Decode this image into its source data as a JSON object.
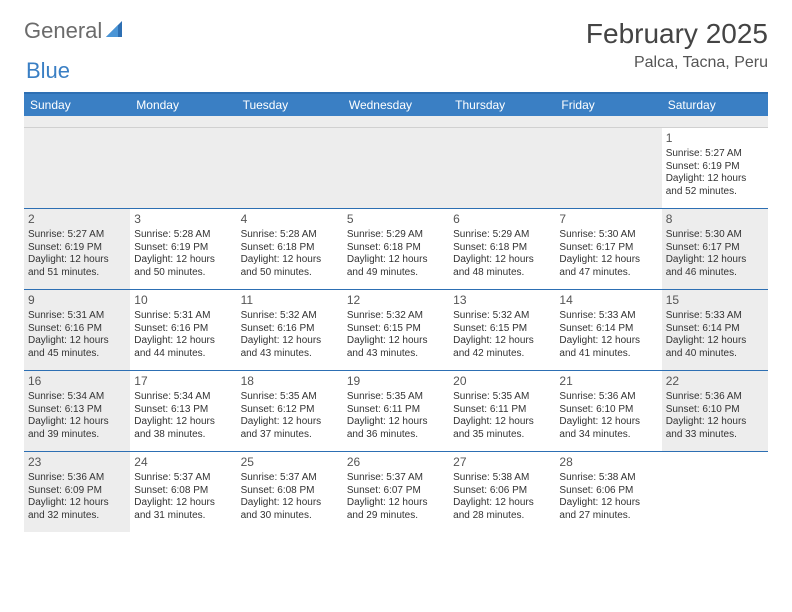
{
  "logo": {
    "text1": "General",
    "text2": "Blue"
  },
  "title": "February 2025",
  "location": "Palca, Tacna, Peru",
  "day_headers": [
    "Sunday",
    "Monday",
    "Tuesday",
    "Wednesday",
    "Thursday",
    "Friday",
    "Saturday"
  ],
  "colors": {
    "header_bg": "#3a7fc4",
    "header_text": "#ffffff",
    "border": "#2d6fb3",
    "shade": "#ededed"
  },
  "weeks": [
    [
      {
        "empty": true
      },
      {
        "empty": true
      },
      {
        "empty": true
      },
      {
        "empty": true
      },
      {
        "empty": true
      },
      {
        "empty": true
      },
      {
        "day": "1",
        "sunrise": "Sunrise: 5:27 AM",
        "sunset": "Sunset: 6:19 PM",
        "daylight": "Daylight: 12 hours and 52 minutes."
      }
    ],
    [
      {
        "day": "2",
        "sunrise": "Sunrise: 5:27 AM",
        "sunset": "Sunset: 6:19 PM",
        "daylight": "Daylight: 12 hours and 51 minutes.",
        "shade": true
      },
      {
        "day": "3",
        "sunrise": "Sunrise: 5:28 AM",
        "sunset": "Sunset: 6:19 PM",
        "daylight": "Daylight: 12 hours and 50 minutes."
      },
      {
        "day": "4",
        "sunrise": "Sunrise: 5:28 AM",
        "sunset": "Sunset: 6:18 PM",
        "daylight": "Daylight: 12 hours and 50 minutes."
      },
      {
        "day": "5",
        "sunrise": "Sunrise: 5:29 AM",
        "sunset": "Sunset: 6:18 PM",
        "daylight": "Daylight: 12 hours and 49 minutes."
      },
      {
        "day": "6",
        "sunrise": "Sunrise: 5:29 AM",
        "sunset": "Sunset: 6:18 PM",
        "daylight": "Daylight: 12 hours and 48 minutes."
      },
      {
        "day": "7",
        "sunrise": "Sunrise: 5:30 AM",
        "sunset": "Sunset: 6:17 PM",
        "daylight": "Daylight: 12 hours and 47 minutes."
      },
      {
        "day": "8",
        "sunrise": "Sunrise: 5:30 AM",
        "sunset": "Sunset: 6:17 PM",
        "daylight": "Daylight: 12 hours and 46 minutes.",
        "shade": true
      }
    ],
    [
      {
        "day": "9",
        "sunrise": "Sunrise: 5:31 AM",
        "sunset": "Sunset: 6:16 PM",
        "daylight": "Daylight: 12 hours and 45 minutes.",
        "shade": true
      },
      {
        "day": "10",
        "sunrise": "Sunrise: 5:31 AM",
        "sunset": "Sunset: 6:16 PM",
        "daylight": "Daylight: 12 hours and 44 minutes."
      },
      {
        "day": "11",
        "sunrise": "Sunrise: 5:32 AM",
        "sunset": "Sunset: 6:16 PM",
        "daylight": "Daylight: 12 hours and 43 minutes."
      },
      {
        "day": "12",
        "sunrise": "Sunrise: 5:32 AM",
        "sunset": "Sunset: 6:15 PM",
        "daylight": "Daylight: 12 hours and 43 minutes."
      },
      {
        "day": "13",
        "sunrise": "Sunrise: 5:32 AM",
        "sunset": "Sunset: 6:15 PM",
        "daylight": "Daylight: 12 hours and 42 minutes."
      },
      {
        "day": "14",
        "sunrise": "Sunrise: 5:33 AM",
        "sunset": "Sunset: 6:14 PM",
        "daylight": "Daylight: 12 hours and 41 minutes."
      },
      {
        "day": "15",
        "sunrise": "Sunrise: 5:33 AM",
        "sunset": "Sunset: 6:14 PM",
        "daylight": "Daylight: 12 hours and 40 minutes.",
        "shade": true
      }
    ],
    [
      {
        "day": "16",
        "sunrise": "Sunrise: 5:34 AM",
        "sunset": "Sunset: 6:13 PM",
        "daylight": "Daylight: 12 hours and 39 minutes.",
        "shade": true
      },
      {
        "day": "17",
        "sunrise": "Sunrise: 5:34 AM",
        "sunset": "Sunset: 6:13 PM",
        "daylight": "Daylight: 12 hours and 38 minutes."
      },
      {
        "day": "18",
        "sunrise": "Sunrise: 5:35 AM",
        "sunset": "Sunset: 6:12 PM",
        "daylight": "Daylight: 12 hours and 37 minutes."
      },
      {
        "day": "19",
        "sunrise": "Sunrise: 5:35 AM",
        "sunset": "Sunset: 6:11 PM",
        "daylight": "Daylight: 12 hours and 36 minutes."
      },
      {
        "day": "20",
        "sunrise": "Sunrise: 5:35 AM",
        "sunset": "Sunset: 6:11 PM",
        "daylight": "Daylight: 12 hours and 35 minutes."
      },
      {
        "day": "21",
        "sunrise": "Sunrise: 5:36 AM",
        "sunset": "Sunset: 6:10 PM",
        "daylight": "Daylight: 12 hours and 34 minutes."
      },
      {
        "day": "22",
        "sunrise": "Sunrise: 5:36 AM",
        "sunset": "Sunset: 6:10 PM",
        "daylight": "Daylight: 12 hours and 33 minutes.",
        "shade": true
      }
    ],
    [
      {
        "day": "23",
        "sunrise": "Sunrise: 5:36 AM",
        "sunset": "Sunset: 6:09 PM",
        "daylight": "Daylight: 12 hours and 32 minutes.",
        "shade": true
      },
      {
        "day": "24",
        "sunrise": "Sunrise: 5:37 AM",
        "sunset": "Sunset: 6:08 PM",
        "daylight": "Daylight: 12 hours and 31 minutes."
      },
      {
        "day": "25",
        "sunrise": "Sunrise: 5:37 AM",
        "sunset": "Sunset: 6:08 PM",
        "daylight": "Daylight: 12 hours and 30 minutes."
      },
      {
        "day": "26",
        "sunrise": "Sunrise: 5:37 AM",
        "sunset": "Sunset: 6:07 PM",
        "daylight": "Daylight: 12 hours and 29 minutes."
      },
      {
        "day": "27",
        "sunrise": "Sunrise: 5:38 AM",
        "sunset": "Sunset: 6:06 PM",
        "daylight": "Daylight: 12 hours and 28 minutes."
      },
      {
        "day": "28",
        "sunrise": "Sunrise: 5:38 AM",
        "sunset": "Sunset: 6:06 PM",
        "daylight": "Daylight: 12 hours and 27 minutes."
      },
      {
        "empty": true
      }
    ]
  ]
}
